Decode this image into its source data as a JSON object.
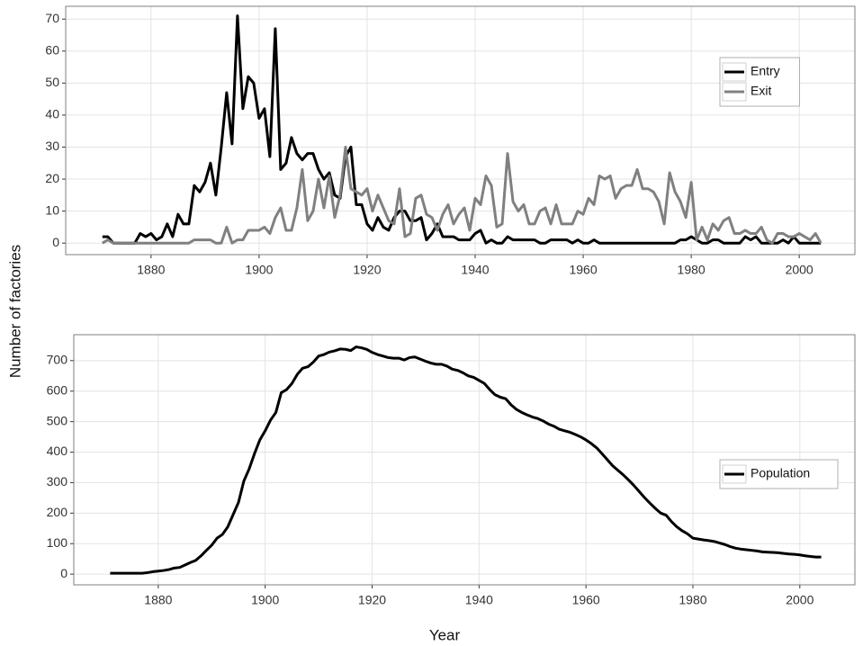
{
  "ylabel": "Number of factories",
  "xlabel": "Year",
  "chart_data": [
    {
      "type": "line",
      "x": [
        1871,
        1872,
        1873,
        1874,
        1875,
        1876,
        1877,
        1878,
        1879,
        1880,
        1881,
        1882,
        1883,
        1884,
        1885,
        1886,
        1887,
        1888,
        1889,
        1890,
        1891,
        1892,
        1893,
        1894,
        1895,
        1896,
        1897,
        1898,
        1899,
        1900,
        1901,
        1902,
        1903,
        1904,
        1905,
        1906,
        1907,
        1908,
        1909,
        1910,
        1911,
        1912,
        1913,
        1914,
        1915,
        1916,
        1917,
        1918,
        1919,
        1920,
        1921,
        1922,
        1923,
        1924,
        1925,
        1926,
        1927,
        1928,
        1929,
        1930,
        1931,
        1932,
        1933,
        1934,
        1935,
        1936,
        1937,
        1938,
        1939,
        1940,
        1941,
        1942,
        1943,
        1944,
        1945,
        1946,
        1947,
        1948,
        1949,
        1950,
        1951,
        1952,
        1953,
        1954,
        1955,
        1956,
        1957,
        1958,
        1959,
        1960,
        1961,
        1962,
        1963,
        1964,
        1965,
        1966,
        1967,
        1968,
        1969,
        1970,
        1971,
        1972,
        1973,
        1974,
        1975,
        1976,
        1977,
        1978,
        1979,
        1980,
        1981,
        1982,
        1983,
        1984,
        1985,
        1986,
        1987,
        1988,
        1989,
        1990,
        1991,
        1992,
        1993,
        1994,
        1995,
        1996,
        1997,
        1998,
        1999,
        2000,
        2001,
        2002,
        2003,
        2004
      ],
      "series": [
        {
          "name": "Entry",
          "color": "#000000",
          "values": [
            2,
            2,
            0,
            0,
            0,
            0,
            0,
            3,
            2,
            3,
            1,
            2,
            6,
            2,
            9,
            6,
            6,
            18,
            16,
            19,
            25,
            15,
            30,
            47,
            31,
            71,
            42,
            52,
            50,
            39,
            42,
            27,
            67,
            23,
            25,
            33,
            28,
            26,
            28,
            28,
            23,
            20,
            22,
            15,
            14,
            27,
            30,
            12,
            12,
            6,
            4,
            8,
            5,
            4,
            8,
            10,
            10,
            7,
            7,
            8,
            1,
            3,
            6,
            2,
            2,
            2,
            1,
            1,
            1,
            3,
            4,
            0,
            1,
            0,
            0,
            2,
            1,
            1,
            1,
            1,
            1,
            0,
            0,
            1,
            1,
            1,
            1,
            0,
            1,
            0,
            0,
            1,
            0,
            0,
            0,
            0,
            0,
            0,
            0,
            0,
            0,
            0,
            0,
            0,
            0,
            0,
            0,
            1,
            1,
            2,
            1,
            0,
            0,
            1,
            1,
            0,
            0,
            0,
            0,
            2,
            1,
            2,
            0,
            0,
            0,
            0,
            1,
            0,
            2,
            0,
            0,
            0,
            0,
            0
          ]
        },
        {
          "name": "Exit",
          "color": "#808080",
          "values": [
            0,
            1,
            0,
            0,
            0,
            0,
            0,
            0,
            0,
            0,
            0,
            0,
            0,
            0,
            0,
            0,
            0,
            1,
            1,
            1,
            1,
            0,
            0,
            5,
            0,
            1,
            1,
            4,
            4,
            4,
            5,
            3,
            8,
            11,
            4,
            4,
            11,
            23,
            7,
            10,
            20,
            11,
            21,
            8,
            15,
            30,
            17,
            16,
            15,
            17,
            10,
            15,
            11,
            7,
            6,
            17,
            2,
            3,
            14,
            15,
            9,
            8,
            4,
            9,
            12,
            6,
            9,
            11,
            4,
            14,
            12,
            21,
            18,
            5,
            6,
            28,
            13,
            10,
            12,
            6,
            6,
            10,
            11,
            6,
            12,
            6,
            6,
            6,
            10,
            9,
            14,
            12,
            21,
            20,
            21,
            14,
            17,
            18,
            18,
            23,
            17,
            17,
            16,
            13,
            6,
            22,
            16,
            13,
            8,
            19,
            1,
            5,
            1,
            6,
            4,
            7,
            8,
            3,
            3,
            4,
            3,
            3,
            5,
            1,
            0,
            3,
            3,
            2,
            2,
            3,
            2,
            1,
            3,
            0
          ]
        }
      ],
      "xlim": [
        1864.2,
        2010.3
      ],
      "ylim": [
        -3.6,
        74
      ],
      "xticks": [
        1880,
        1900,
        1920,
        1940,
        1960,
        1980,
        2000
      ],
      "yticks": [
        0,
        10,
        20,
        30,
        40,
        50,
        60,
        70
      ],
      "grid": true,
      "legend": "right"
    },
    {
      "type": "line",
      "x": [
        1871,
        1872,
        1873,
        1874,
        1875,
        1876,
        1877,
        1878,
        1879,
        1880,
        1881,
        1882,
        1883,
        1884,
        1885,
        1886,
        1887,
        1888,
        1889,
        1890,
        1891,
        1892,
        1893,
        1894,
        1895,
        1896,
        1897,
        1898,
        1899,
        1900,
        1901,
        1902,
        1903,
        1904,
        1905,
        1906,
        1907,
        1908,
        1909,
        1910,
        1911,
        1912,
        1913,
        1914,
        1915,
        1916,
        1917,
        1918,
        1919,
        1920,
        1921,
        1922,
        1923,
        1924,
        1925,
        1926,
        1927,
        1928,
        1929,
        1930,
        1931,
        1932,
        1933,
        1934,
        1935,
        1936,
        1937,
        1938,
        1939,
        1940,
        1941,
        1942,
        1943,
        1944,
        1945,
        1946,
        1947,
        1948,
        1949,
        1950,
        1951,
        1952,
        1953,
        1954,
        1955,
        1956,
        1957,
        1958,
        1959,
        1960,
        1961,
        1962,
        1963,
        1964,
        1965,
        1966,
        1967,
        1968,
        1969,
        1970,
        1971,
        1972,
        1973,
        1974,
        1975,
        1976,
        1977,
        1978,
        1979,
        1980,
        1981,
        1982,
        1983,
        1984,
        1985,
        1986,
        1987,
        1988,
        1989,
        1990,
        1991,
        1992,
        1993,
        1994,
        1995,
        1996,
        1997,
        1998,
        1999,
        2000,
        2001,
        2002,
        2003,
        2004
      ],
      "series": [
        {
          "name": "Population",
          "color": "#000000",
          "values": [
            3,
            3,
            3,
            3,
            3,
            3,
            3,
            5,
            8,
            10,
            12,
            15,
            20,
            22,
            30,
            38,
            45,
            60,
            78,
            95,
            118,
            130,
            155,
            195,
            235,
            305,
            345,
            395,
            440,
            470,
            505,
            530,
            595,
            605,
            625,
            655,
            675,
            680,
            695,
            715,
            720,
            728,
            732,
            738,
            737,
            733,
            745,
            742,
            737,
            727,
            720,
            715,
            710,
            708,
            708,
            702,
            710,
            712,
            705,
            698,
            692,
            688,
            688,
            682,
            672,
            668,
            660,
            650,
            645,
            635,
            625,
            605,
            588,
            580,
            575,
            555,
            540,
            530,
            522,
            515,
            510,
            502,
            492,
            485,
            475,
            470,
            465,
            458,
            450,
            440,
            428,
            414,
            395,
            375,
            355,
            340,
            325,
            308,
            290,
            270,
            250,
            232,
            215,
            200,
            193,
            172,
            155,
            142,
            132,
            118,
            115,
            112,
            110,
            107,
            102,
            97,
            90,
            85,
            82,
            80,
            78,
            76,
            73,
            72,
            71,
            70,
            68,
            66,
            65,
            63,
            60,
            58,
            56,
            56
          ]
        }
      ],
      "xlim": [
        1864.2,
        2010.3
      ],
      "ylim": [
        -35,
        785
      ],
      "xticks": [
        1880,
        1900,
        1920,
        1940,
        1960,
        1980,
        2000
      ],
      "yticks": [
        0,
        100,
        200,
        300,
        400,
        500,
        600,
        700
      ],
      "grid": true,
      "legend": "right"
    }
  ]
}
